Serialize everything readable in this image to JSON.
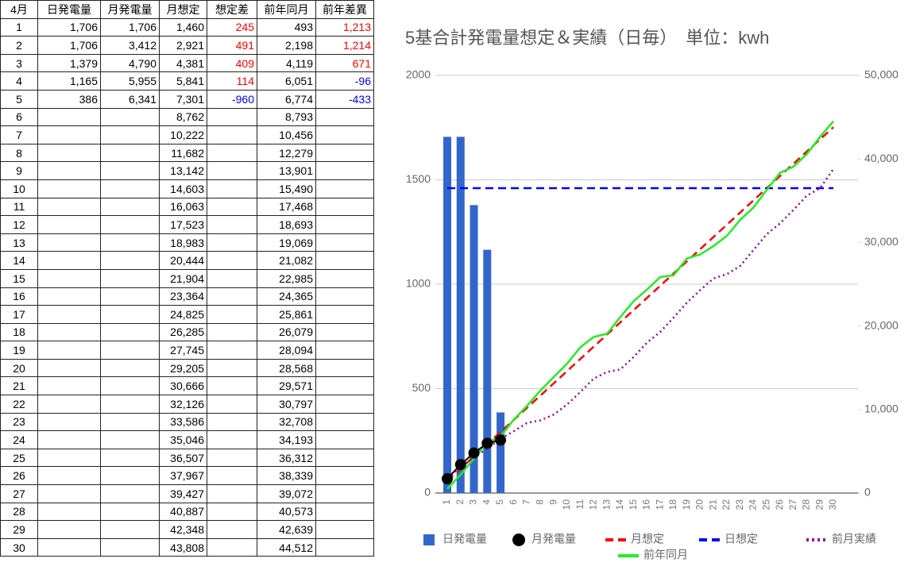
{
  "table": {
    "header": [
      "4月",
      "日発電量",
      "月発電量",
      "月想定",
      "想定差",
      "前年同月",
      "前年差異"
    ],
    "rows": [
      [
        "1",
        "1,706",
        "1,706",
        "1,460",
        "245",
        "493",
        "1,213"
      ],
      [
        "2",
        "1,706",
        "3,412",
        "2,921",
        "491",
        "2,198",
        "1,214"
      ],
      [
        "3",
        "1,379",
        "4,790",
        "4,381",
        "409",
        "4,119",
        "671"
      ],
      [
        "4",
        "1,165",
        "5,955",
        "5,841",
        "114",
        "6,051",
        "-96"
      ],
      [
        "5",
        "386",
        "6,341",
        "7,301",
        "-960",
        "6,774",
        "-433"
      ],
      [
        "6",
        null,
        null,
        "8,762",
        null,
        "8,793",
        null
      ],
      [
        "7",
        null,
        null,
        "10,222",
        null,
        "10,456",
        null
      ],
      [
        "8",
        null,
        null,
        "11,682",
        null,
        "12,279",
        null
      ],
      [
        "9",
        null,
        null,
        "13,142",
        null,
        "13,901",
        null
      ],
      [
        "10",
        null,
        null,
        "14,603",
        null,
        "15,490",
        null
      ],
      [
        "11",
        null,
        null,
        "16,063",
        null,
        "17,468",
        null
      ],
      [
        "12",
        null,
        null,
        "17,523",
        null,
        "18,693",
        null
      ],
      [
        "13",
        null,
        null,
        "18,983",
        null,
        "19,069",
        null
      ],
      [
        "14",
        null,
        null,
        "20,444",
        null,
        "21,082",
        null
      ],
      [
        "15",
        null,
        null,
        "21,904",
        null,
        "22,985",
        null
      ],
      [
        "16",
        null,
        null,
        "23,364",
        null,
        "24,365",
        null
      ],
      [
        "17",
        null,
        null,
        "24,825",
        null,
        "25,861",
        null
      ],
      [
        "18",
        null,
        null,
        "26,285",
        null,
        "26,079",
        null
      ],
      [
        "19",
        null,
        null,
        "27,745",
        null,
        "28,094",
        null
      ],
      [
        "20",
        null,
        null,
        "29,205",
        null,
        "28,568",
        null
      ],
      [
        "21",
        null,
        null,
        "30,666",
        null,
        "29,571",
        null
      ],
      [
        "22",
        null,
        null,
        "32,126",
        null,
        "30,797",
        null
      ],
      [
        "23",
        null,
        null,
        "33,586",
        null,
        "32,708",
        null
      ],
      [
        "24",
        null,
        null,
        "35,046",
        null,
        "34,193",
        null
      ],
      [
        "25",
        null,
        null,
        "36,507",
        null,
        "36,312",
        null
      ],
      [
        "26",
        null,
        null,
        "37,967",
        null,
        "38,339",
        null
      ],
      [
        "27",
        null,
        null,
        "39,427",
        null,
        "39,072",
        null
      ],
      [
        "28",
        null,
        null,
        "40,887",
        null,
        "40,573",
        null
      ],
      [
        "29",
        null,
        null,
        "42,348",
        null,
        "42,639",
        null
      ],
      [
        "30",
        null,
        null,
        "43,808",
        null,
        "44,512",
        null
      ]
    ]
  },
  "chart_data": {
    "type": "combo",
    "title": "5基合計発電量想定＆実績（日毎）　単位：kwh",
    "categories": [
      "1",
      "2",
      "3",
      "4",
      "5",
      "6",
      "7",
      "8",
      "9",
      "10",
      "11",
      "12",
      "13",
      "14",
      "15",
      "16",
      "17",
      "18",
      "19",
      "20",
      "21",
      "22",
      "23",
      "24",
      "25",
      "26",
      "27",
      "28",
      "29",
      "30"
    ],
    "ylim": [
      0,
      2000
    ],
    "yticks": [
      0,
      500,
      1000,
      1500,
      2000
    ],
    "y2lim": [
      0,
      50000
    ],
    "y2ticks": [
      0,
      {
        "value": 10000,
        "label": "10,000"
      },
      {
        "value": 20000,
        "label": "20,000"
      },
      {
        "value": 30000,
        "label": "30,000"
      },
      {
        "value": 40000,
        "label": "40,000"
      },
      {
        "value": 50000,
        "label": "50,000"
      }
    ],
    "grid": true,
    "series": [
      {
        "name": "日発電量",
        "kind": "bar",
        "color": "#3366cc",
        "values": [
          1706,
          1706,
          1379,
          1165,
          386,
          null,
          null,
          null,
          null,
          null,
          null,
          null,
          null,
          null,
          null,
          null,
          null,
          null,
          null,
          null,
          null,
          null,
          null,
          null,
          null,
          null,
          null,
          null,
          null,
          null
        ]
      },
      {
        "name": "月発電量",
        "kind": "dot",
        "color": "#000000",
        "axis": "y2",
        "values": [
          1706,
          3412,
          4790,
          5955,
          6341,
          null,
          null,
          null,
          null,
          null,
          null,
          null,
          null,
          null,
          null,
          null,
          null,
          null,
          null,
          null,
          null,
          null,
          null,
          null,
          null,
          null,
          null,
          null,
          null,
          null
        ]
      },
      {
        "name": "月想定",
        "kind": "line",
        "dash": "dashed",
        "color": "#ff0000",
        "axis": "y2",
        "values": [
          1460,
          2921,
          4381,
          5841,
          7301,
          8762,
          10222,
          11682,
          13142,
          14603,
          16063,
          17523,
          18983,
          20444,
          21904,
          23364,
          24825,
          26285,
          27745,
          29205,
          30666,
          32126,
          33586,
          35046,
          36507,
          37967,
          39427,
          40887,
          42348,
          43808
        ]
      },
      {
        "name": "日想定",
        "kind": "line",
        "dash": "dashed",
        "color": "#0000ff",
        "values": [
          1460,
          1460,
          1460,
          1460,
          1460,
          1460,
          1460,
          1460,
          1460,
          1460,
          1460,
          1460,
          1460,
          1460,
          1460,
          1460,
          1460,
          1460,
          1460,
          1460,
          1460,
          1460,
          1460,
          1460,
          1460,
          1460,
          1460,
          1460,
          1460,
          1460
        ]
      },
      {
        "name": "前月実績",
        "kind": "line",
        "dash": "dotted",
        "color": "#990099",
        "axis": "y2",
        "values": [
          1800,
          3100,
          4300,
          5300,
          6500,
          7400,
          8400,
          8700,
          9400,
          10600,
          12100,
          13700,
          14500,
          14800,
          16300,
          18000,
          19300,
          21000,
          22800,
          24300,
          25700,
          26200,
          27200,
          29100,
          31000,
          32300,
          33900,
          35600,
          36500,
          38800
        ]
      },
      {
        "name": "前年同月",
        "kind": "line",
        "dash": "solid",
        "color": "#22ee22",
        "axis": "y2",
        "values": [
          493,
          2198,
          4119,
          6051,
          6774,
          8793,
          10456,
          12279,
          13901,
          15490,
          17468,
          18693,
          19069,
          21082,
          22985,
          24365,
          25861,
          26079,
          28094,
          28568,
          29571,
          30797,
          32708,
          34193,
          36312,
          38339,
          39072,
          40573,
          42639,
          44512
        ]
      }
    ]
  }
}
